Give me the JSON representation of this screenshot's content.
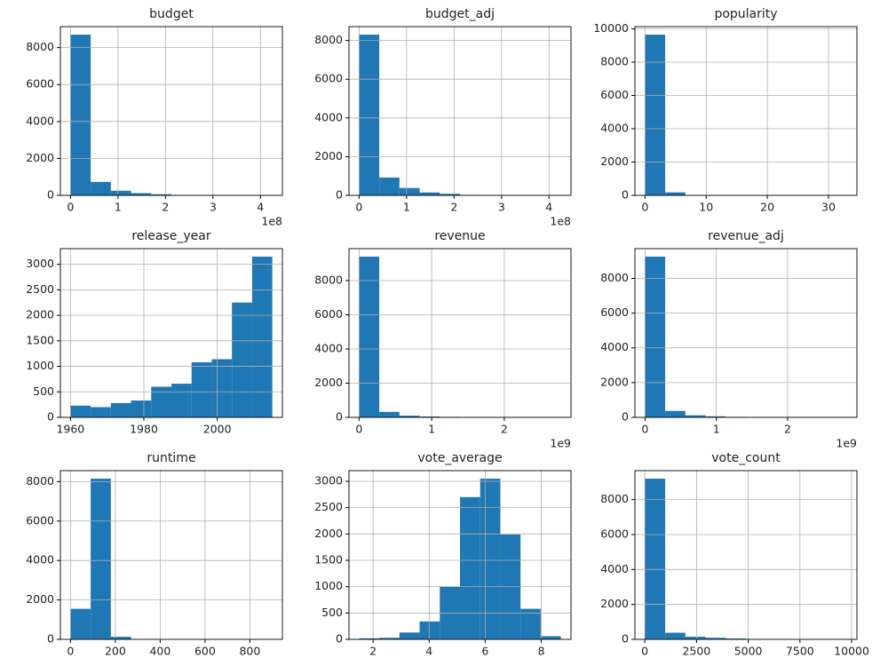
{
  "chart_data": [
    {
      "type": "histogram",
      "title": "budget",
      "color": "#1f77b4",
      "grid": true,
      "bins": [
        0,
        0.425,
        0.85,
        1.275,
        1.7,
        2.125,
        2.55,
        2.975,
        3.4,
        3.825,
        4.25
      ],
      "counts": [
        8700,
        730,
        250,
        120,
        60,
        20,
        10,
        3,
        1,
        1
      ],
      "xlim": [
        -0.2125,
        4.4625
      ],
      "xticks": [
        0,
        1,
        2,
        3,
        4
      ],
      "x_offset_label": "1e8",
      "ylim": [
        0,
        9135
      ],
      "yticks": [
        0,
        2000,
        4000,
        6000,
        8000
      ]
    },
    {
      "type": "histogram",
      "title": "budget_adj",
      "color": "#1f77b4",
      "grid": true,
      "bins": [
        0,
        0.425,
        0.85,
        1.275,
        1.7,
        2.125,
        2.55,
        2.975,
        3.4,
        3.825,
        4.25
      ],
      "counts": [
        8300,
        920,
        380,
        150,
        80,
        25,
        10,
        5,
        2,
        1
      ],
      "xlim": [
        -0.2125,
        4.4625
      ],
      "xticks": [
        0,
        1,
        2,
        3,
        4
      ],
      "x_offset_label": "1e8",
      "ylim": [
        0,
        8715
      ],
      "yticks": [
        0,
        2000,
        4000,
        6000,
        8000
      ]
    },
    {
      "type": "histogram",
      "title": "popularity",
      "color": "#1f77b4",
      "grid": true,
      "bins": [
        0,
        3.3,
        6.6,
        9.9,
        13.2,
        16.5,
        19.8,
        23.1,
        26.4,
        29.7,
        33
      ],
      "counts": [
        9650,
        180,
        20,
        5,
        3,
        1,
        0,
        0,
        0,
        1
      ],
      "xlim": [
        -1.65,
        34.65
      ],
      "xticks": [
        0,
        10,
        20,
        30
      ],
      "ylim": [
        0,
        10132
      ],
      "yticks": [
        0,
        2000,
        4000,
        6000,
        8000,
        10000
      ]
    },
    {
      "type": "histogram",
      "title": "release_year",
      "color": "#1f77b4",
      "grid": true,
      "bins": [
        1960,
        1965.5,
        1971,
        1976.5,
        1982,
        1987.5,
        1993,
        1998.5,
        2004,
        2009.5,
        2015
      ],
      "counts": [
        230,
        200,
        280,
        330,
        600,
        660,
        1080,
        1140,
        2250,
        3150
      ],
      "xlim": [
        1957.25,
        2017.75
      ],
      "xticks": [
        1960,
        1980,
        2000
      ],
      "ylim": [
        0,
        3307
      ],
      "yticks": [
        0,
        500,
        1000,
        1500,
        2000,
        2500,
        3000
      ]
    },
    {
      "type": "histogram",
      "title": "revenue",
      "color": "#1f77b4",
      "grid": true,
      "bins": [
        0,
        0.278,
        0.556,
        0.834,
        1.112,
        1.39,
        1.668,
        1.946,
        2.224,
        2.502,
        2.78
      ],
      "counts": [
        9400,
        320,
        100,
        50,
        30,
        20,
        15,
        10,
        5,
        3
      ],
      "xlim": [
        -0.139,
        2.919
      ],
      "xticks": [
        0,
        1,
        2
      ],
      "x_offset_label": "1e9",
      "ylim": [
        0,
        9870
      ],
      "yticks": [
        0,
        2000,
        4000,
        6000,
        8000
      ]
    },
    {
      "type": "histogram",
      "title": "revenue_adj",
      "color": "#1f77b4",
      "grid": true,
      "bins": [
        0,
        0.283,
        0.566,
        0.849,
        1.132,
        1.415,
        1.698,
        1.981,
        2.264,
        2.547,
        2.83
      ],
      "counts": [
        9250,
        370,
        120,
        60,
        30,
        20,
        10,
        5,
        3,
        2
      ],
      "xlim": [
        -0.1415,
        2.9715
      ],
      "xticks": [
        0,
        1,
        2
      ],
      "x_offset_label": "1e9",
      "ylim": [
        0,
        9712
      ],
      "yticks": [
        0,
        2000,
        4000,
        6000,
        8000
      ]
    },
    {
      "type": "histogram",
      "title": "runtime",
      "color": "#1f77b4",
      "grid": true,
      "bins": [
        0,
        90,
        180,
        270,
        360,
        450,
        540,
        630,
        720,
        810,
        900
      ],
      "counts": [
        1550,
        8150,
        130,
        20,
        5,
        3,
        2,
        1,
        1,
        1
      ],
      "xlim": [
        -45,
        945
      ],
      "xticks": [
        0,
        200,
        400,
        600,
        800
      ],
      "ylim": [
        0,
        8557
      ],
      "yticks": [
        0,
        2000,
        4000,
        6000,
        8000
      ]
    },
    {
      "type": "histogram",
      "title": "vote_average",
      "color": "#1f77b4",
      "grid": true,
      "bins": [
        1.5,
        2.22,
        2.94,
        3.66,
        4.38,
        5.1,
        5.82,
        6.54,
        7.26,
        7.98,
        8.7
      ],
      "counts": [
        20,
        30,
        130,
        340,
        1000,
        2700,
        3050,
        1990,
        580,
        60
      ],
      "xlim": [
        1.14,
        9.06
      ],
      "xticks": [
        2,
        4,
        6,
        8
      ],
      "ylim": [
        0,
        3202
      ],
      "yticks": [
        0,
        500,
        1000,
        1500,
        2000,
        2500,
        3000
      ]
    },
    {
      "type": "histogram",
      "title": "vote_count",
      "color": "#1f77b4",
      "grid": true,
      "bins": [
        10,
        985.7,
        1961.4,
        2937.1,
        3912.8,
        4888.5,
        5864.2,
        6839.9,
        7815.6,
        8791.3,
        9767
      ],
      "counts": [
        9200,
        380,
        150,
        90,
        50,
        20,
        10,
        5,
        3,
        2
      ],
      "xlim": [
        -478,
        10255
      ],
      "xticks": [
        0,
        2500,
        5000,
        7500,
        10000
      ],
      "ylim": [
        0,
        9660
      ],
      "yticks": [
        0,
        2000,
        4000,
        6000,
        8000
      ]
    }
  ]
}
